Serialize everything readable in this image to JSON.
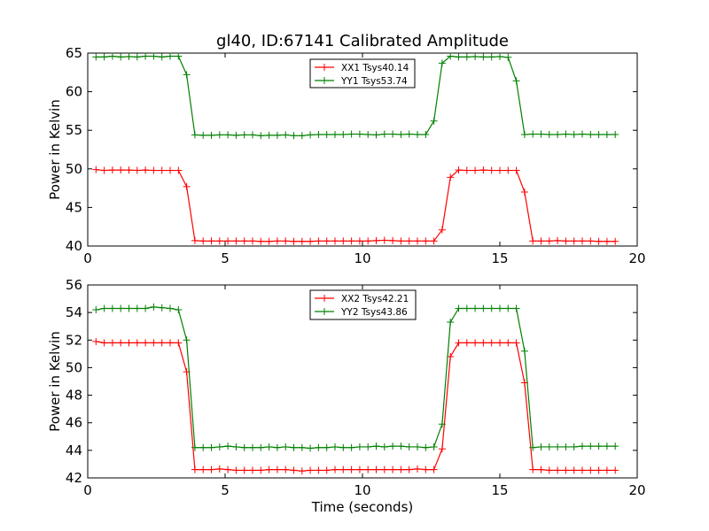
{
  "figure": {
    "title": "gl40, ID:67141 Calibrated Amplitude",
    "xlabel": "Time (seconds)",
    "colors": {
      "red": "#ff0000",
      "green": "#008000"
    }
  },
  "chart_data": [
    {
      "type": "line",
      "title": "gl40, ID:67141 Calibrated Amplitude",
      "xlabel": "",
      "ylabel": "Power in Kelvin",
      "xlim": [
        0,
        20
      ],
      "ylim": [
        40,
        65
      ],
      "xticks": [
        0,
        5,
        10,
        15,
        20
      ],
      "yticks": [
        40,
        45,
        50,
        55,
        60,
        65
      ],
      "grid": false,
      "legend": "top-center",
      "x": [
        0.3,
        0.6,
        0.9,
        1.2,
        1.5,
        1.8,
        2.1,
        2.4,
        2.7,
        3.0,
        3.3,
        3.6,
        3.9,
        4.2,
        4.5,
        4.8,
        5.1,
        5.4,
        5.7,
        6.0,
        6.3,
        6.6,
        6.9,
        7.2,
        7.5,
        7.8,
        8.1,
        8.4,
        8.7,
        9.0,
        9.3,
        9.6,
        9.9,
        10.2,
        10.5,
        10.8,
        11.1,
        11.4,
        11.7,
        12.0,
        12.3,
        12.6,
        12.9,
        13.2,
        13.5,
        13.8,
        14.1,
        14.4,
        14.7,
        15.0,
        15.3,
        15.6,
        15.9,
        16.2,
        16.5,
        16.8,
        17.1,
        17.4,
        17.7,
        18.0,
        18.3,
        18.6,
        18.9,
        19.2
      ],
      "series": [
        {
          "name": "XX1 Tsys40.14",
          "color": "#ff0000",
          "values": [
            49.9,
            49.8,
            49.85,
            49.85,
            49.85,
            49.8,
            49.85,
            49.8,
            49.8,
            49.8,
            49.8,
            47.7,
            40.7,
            40.65,
            40.65,
            40.65,
            40.65,
            40.65,
            40.65,
            40.65,
            40.6,
            40.6,
            40.65,
            40.65,
            40.6,
            40.6,
            40.6,
            40.65,
            40.65,
            40.65,
            40.65,
            40.65,
            40.65,
            40.65,
            40.7,
            40.75,
            40.7,
            40.65,
            40.65,
            40.65,
            40.65,
            40.65,
            42.1,
            48.9,
            49.85,
            49.8,
            49.8,
            49.85,
            49.8,
            49.8,
            49.8,
            49.8,
            47.0,
            40.65,
            40.65,
            40.65,
            40.7,
            40.65,
            40.65,
            40.65,
            40.65,
            40.6,
            40.6,
            40.6
          ]
        },
        {
          "name": "YY1 Tsys53.74",
          "color": "#008000",
          "values": [
            64.5,
            64.5,
            64.6,
            64.5,
            64.55,
            64.5,
            64.6,
            64.6,
            64.5,
            64.6,
            64.6,
            62.2,
            54.4,
            54.35,
            54.35,
            54.4,
            54.4,
            54.35,
            54.4,
            54.4,
            54.3,
            54.35,
            54.35,
            54.4,
            54.3,
            54.3,
            54.4,
            54.45,
            54.45,
            54.45,
            54.45,
            54.5,
            54.5,
            54.45,
            54.4,
            54.5,
            54.5,
            54.45,
            54.5,
            54.45,
            54.45,
            56.2,
            63.7,
            64.6,
            64.5,
            64.5,
            64.55,
            64.5,
            64.5,
            64.55,
            64.45,
            61.4,
            54.45,
            54.5,
            54.5,
            54.45,
            54.45,
            54.5,
            54.45,
            54.5,
            54.45,
            54.45,
            54.45,
            54.45
          ]
        }
      ]
    },
    {
      "type": "line",
      "title": "",
      "xlabel": "Time (seconds)",
      "ylabel": "Power in Kelvin",
      "xlim": [
        0,
        20
      ],
      "ylim": [
        42,
        56
      ],
      "xticks": [
        0,
        5,
        10,
        15,
        20
      ],
      "yticks": [
        42,
        44,
        46,
        48,
        50,
        52,
        54,
        56
      ],
      "grid": false,
      "legend": "top-center",
      "x": [
        0.3,
        0.6,
        0.9,
        1.2,
        1.5,
        1.8,
        2.1,
        2.4,
        2.7,
        3.0,
        3.3,
        3.6,
        3.9,
        4.2,
        4.5,
        4.8,
        5.1,
        5.4,
        5.7,
        6.0,
        6.3,
        6.6,
        6.9,
        7.2,
        7.5,
        7.8,
        8.1,
        8.4,
        8.7,
        9.0,
        9.3,
        9.6,
        9.9,
        10.2,
        10.5,
        10.8,
        11.1,
        11.4,
        11.7,
        12.0,
        12.3,
        12.6,
        12.9,
        13.2,
        13.5,
        13.8,
        14.1,
        14.4,
        14.7,
        15.0,
        15.3,
        15.6,
        15.9,
        16.2,
        16.5,
        16.8,
        17.1,
        17.4,
        17.7,
        18.0,
        18.3,
        18.6,
        18.9,
        19.2
      ],
      "series": [
        {
          "name": "XX2 Tsys42.21",
          "color": "#ff0000",
          "values": [
            51.9,
            51.8,
            51.8,
            51.8,
            51.8,
            51.8,
            51.8,
            51.8,
            51.8,
            51.8,
            51.8,
            49.7,
            42.6,
            42.6,
            42.6,
            42.65,
            42.6,
            42.55,
            42.55,
            42.55,
            42.55,
            42.6,
            42.6,
            42.6,
            42.55,
            42.5,
            42.55,
            42.55,
            42.55,
            42.6,
            42.6,
            42.6,
            42.6,
            42.6,
            42.6,
            42.6,
            42.6,
            42.6,
            42.6,
            42.65,
            42.6,
            42.6,
            44.1,
            50.8,
            51.8,
            51.8,
            51.8,
            51.8,
            51.8,
            51.8,
            51.8,
            51.8,
            48.9,
            42.6,
            42.6,
            42.55,
            42.55,
            42.55,
            42.55,
            42.55,
            42.55,
            42.55,
            42.55,
            42.55
          ]
        },
        {
          "name": "YY2 Tsys43.86",
          "color": "#008000",
          "values": [
            54.2,
            54.3,
            54.3,
            54.3,
            54.3,
            54.3,
            54.3,
            54.4,
            54.35,
            54.3,
            54.2,
            52.0,
            44.2,
            44.2,
            44.2,
            44.25,
            44.3,
            44.25,
            44.2,
            44.2,
            44.2,
            44.25,
            44.2,
            44.25,
            44.2,
            44.2,
            44.15,
            44.2,
            44.2,
            44.25,
            44.2,
            44.2,
            44.25,
            44.25,
            44.3,
            44.25,
            44.3,
            44.3,
            44.25,
            44.25,
            44.2,
            44.25,
            45.9,
            53.3,
            54.3,
            54.3,
            54.3,
            54.3,
            54.3,
            54.3,
            54.3,
            54.3,
            51.2,
            44.2,
            44.25,
            44.25,
            44.25,
            44.25,
            44.25,
            44.3,
            44.3,
            44.3,
            44.3,
            44.3
          ]
        }
      ]
    }
  ]
}
